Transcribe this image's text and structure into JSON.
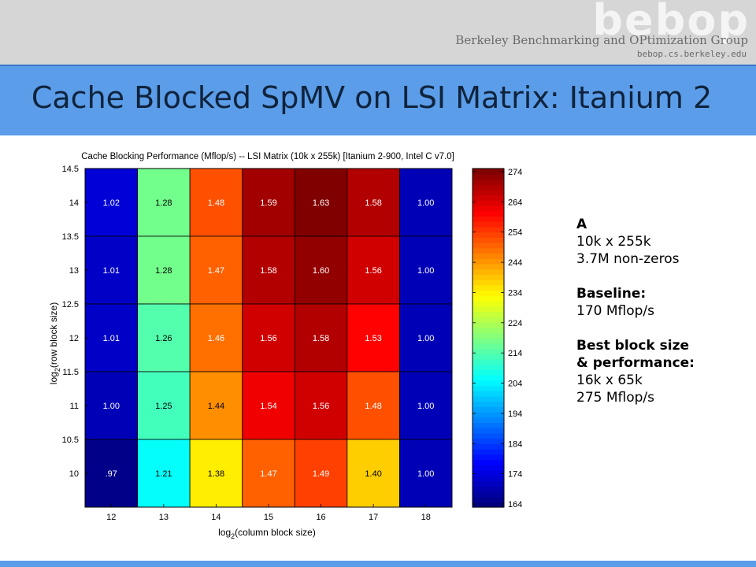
{
  "header": {
    "logo": "bebop",
    "org_name": "Berkeley Benchmarking and OPtimization Group",
    "org_url": "bebop.cs.berkeley.edu"
  },
  "slide": {
    "title": "Cache Blocked SpMV on LSI Matrix: Itanium 2"
  },
  "info": {
    "matrix_label": "A",
    "dimensions": "10k x 255k",
    "nonzeros": "3.7M non-zeros",
    "baseline_label": "Baseline:",
    "baseline_value": "170 Mflop/s",
    "best_label_1": "Best block size",
    "best_label_2": "& performance:",
    "best_size": "16k x 65k",
    "best_perf": "275 Mflop/s"
  },
  "chart_data": {
    "type": "heatmap",
    "title": "Cache Blocking Performance (Mflop/s) -- LSI Matrix (10k x 255k) [Itanium 2-900, Intel C v7.0]",
    "xlabel": "log2(column block size)",
    "ylabel": "log2(row block size)",
    "x": [
      12,
      13,
      14,
      15,
      16,
      17,
      18
    ],
    "y": [
      14,
      13,
      12,
      11,
      10
    ],
    "ytick_labels": [
      "14.5",
      "14",
      "13.5",
      "13",
      "12.5",
      "12",
      "11.5",
      "11",
      "10.5",
      "10"
    ],
    "cell_labels": [
      [
        "1.02",
        "1.28",
        "1.48",
        "1.59",
        "1.63",
        "1.58",
        "1.00"
      ],
      [
        "1.01",
        "1.28",
        "1.47",
        "1.58",
        "1.60",
        "1.56",
        "1.00"
      ],
      [
        "1.01",
        "1.26",
        "1.46",
        "1.56",
        "1.58",
        "1.53",
        "1.00"
      ],
      [
        "1.00",
        "1.25",
        "1.44",
        "1.54",
        "1.56",
        "1.48",
        "1.00"
      ],
      [
        ".97",
        "1.21",
        "1.38",
        "1.47",
        "1.49",
        "1.40",
        "1.00"
      ]
    ],
    "colorbar": {
      "min": 164,
      "max": 274,
      "ticks": [
        164,
        174,
        184,
        194,
        204,
        214,
        224,
        234,
        244,
        254,
        264,
        274
      ],
      "colormap": "jet"
    },
    "baseline": 170
  }
}
